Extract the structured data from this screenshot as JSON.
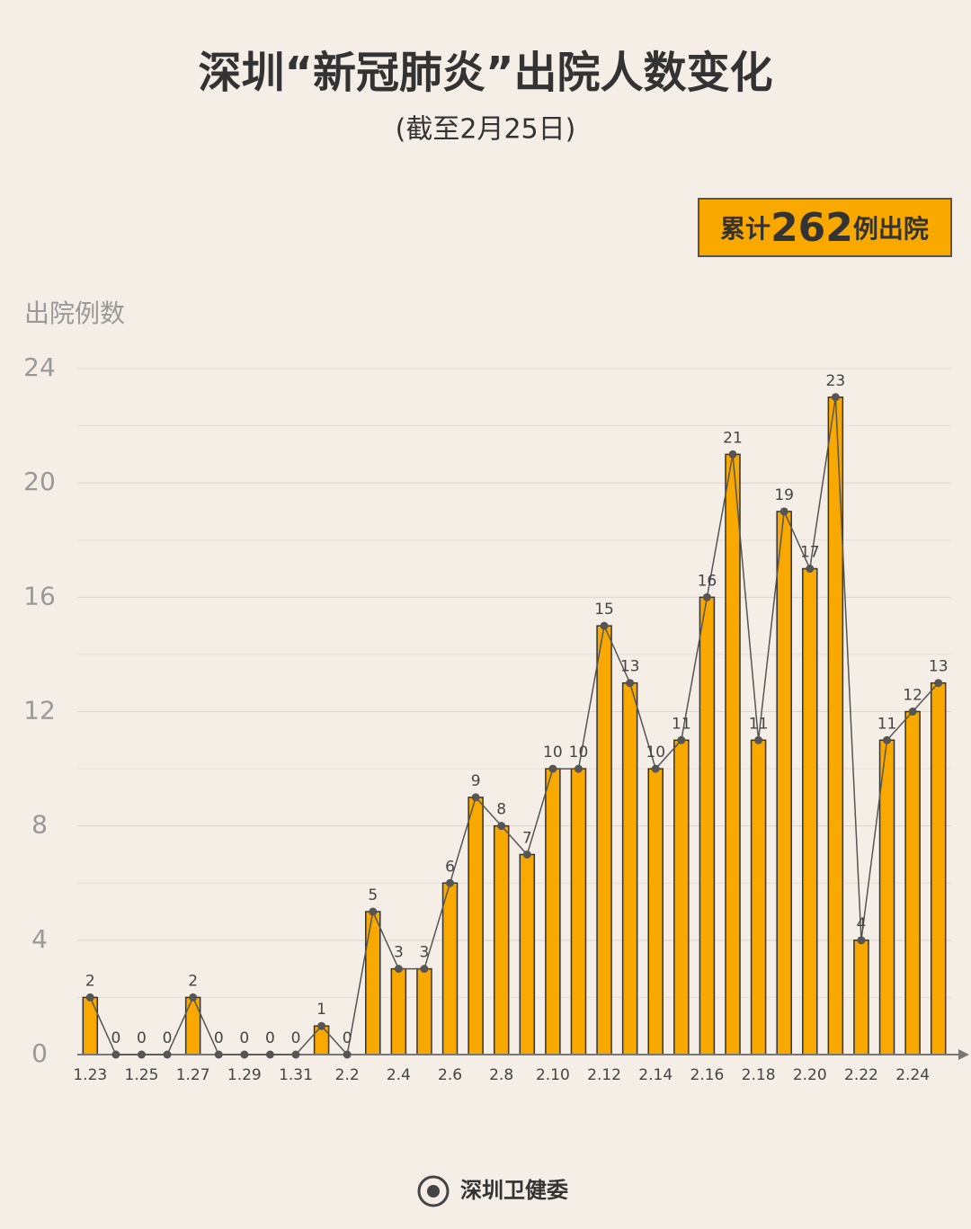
{
  "chart_data": {
    "type": "bar",
    "title": "深圳“新冠肺炎”出院人数变化",
    "subtitle": "(截至2月25日)",
    "badge": {
      "prefix": "累计",
      "total": 262,
      "suffix": "例出院"
    },
    "y_label": "出院例数",
    "source": "深圳卫健委",
    "categories": [
      "1.23",
      null,
      "1.25",
      null,
      "1.27",
      null,
      "1.29",
      null,
      "1.31",
      null,
      "2.2",
      null,
      "2.4",
      null,
      "2.6",
      null,
      "2.8",
      null,
      "2.10",
      null,
      "2.12",
      null,
      "2.14",
      null,
      "2.16",
      null,
      "2.18",
      null,
      "2.20",
      null,
      "2.22",
      null,
      "2.24",
      null
    ],
    "values": [
      2,
      0,
      0,
      0,
      2,
      0,
      0,
      0,
      0,
      1,
      0,
      5,
      3,
      3,
      6,
      9,
      8,
      7,
      10,
      10,
      15,
      13,
      10,
      11,
      16,
      21,
      11,
      19,
      17,
      23,
      4,
      11,
      12,
      13
    ],
    "color": "#f9a800",
    "line_color": "#555555",
    "ylim": [
      0,
      24
    ],
    "yticks": [
      0,
      4,
      8,
      12,
      16,
      20,
      24
    ],
    "minor_yticks": [
      2,
      6,
      10,
      14,
      18,
      22
    ],
    "grid": true
  }
}
